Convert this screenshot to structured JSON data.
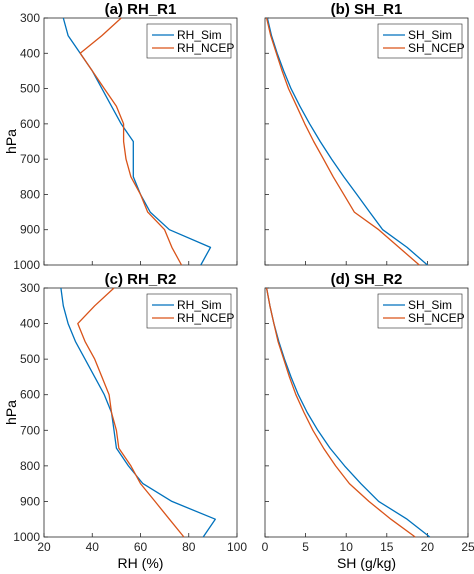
{
  "chart_data": [
    {
      "type": "line",
      "title": "(a) RH_R1",
      "xlabel": "",
      "ylabel": "hPa",
      "xlim": [
        20,
        100
      ],
      "ylim": [
        1000,
        300
      ],
      "xticks": [],
      "yticks": [
        "300",
        "400",
        "500",
        "600",
        "700",
        "800",
        "900",
        "1000"
      ],
      "legend": "top-right",
      "series": [
        {
          "name": "RH_Sim",
          "color": "#0072bd",
          "x": [
            28,
            30,
            35,
            40,
            44,
            48,
            52,
            57,
            57,
            57,
            60,
            64,
            72,
            89,
            85
          ],
          "y": [
            300,
            350,
            400,
            450,
            500,
            550,
            600,
            650,
            700,
            750,
            800,
            850,
            900,
            950,
            1000
          ]
        },
        {
          "name": "RH_NCEP",
          "color": "#d95319",
          "x": [
            52,
            44,
            35,
            40,
            45,
            50,
            53,
            53,
            54,
            56,
            60,
            63,
            70,
            73,
            77
          ],
          "y": [
            300,
            350,
            400,
            450,
            500,
            550,
            600,
            650,
            700,
            750,
            800,
            850,
            900,
            950,
            1000
          ]
        }
      ]
    },
    {
      "type": "line",
      "title": "(b) SH_R1",
      "xlabel": "",
      "ylabel": "",
      "xlim": [
        0,
        25
      ],
      "ylim": [
        1000,
        300
      ],
      "xticks": [],
      "yticks": [],
      "legend": "top-right",
      "series": [
        {
          "name": "SH_Sim",
          "color": "#0072bd",
          "x": [
            0.3,
            0.8,
            1.5,
            2.3,
            3.2,
            4.3,
            5.5,
            6.8,
            8.2,
            9.7,
            11.3,
            12.9,
            14.5,
            17.5,
            20
          ],
          "y": [
            300,
            350,
            400,
            450,
            500,
            550,
            600,
            650,
            700,
            750,
            800,
            850,
            900,
            950,
            1000
          ]
        },
        {
          "name": "SH_NCEP",
          "color": "#d95319",
          "x": [
            0.2,
            0.7,
            1.4,
            2.1,
            2.9,
            3.9,
            4.9,
            6.0,
            7.2,
            8.4,
            9.7,
            11.0,
            14,
            16.5,
            19
          ],
          "y": [
            300,
            350,
            400,
            450,
            500,
            550,
            600,
            650,
            700,
            750,
            800,
            850,
            900,
            950,
            1000
          ]
        }
      ]
    },
    {
      "type": "line",
      "title": "(c) RH_R2",
      "xlabel": "RH (%)",
      "ylabel": "hPa",
      "xlim": [
        20,
        100
      ],
      "ylim": [
        1000,
        300
      ],
      "xticks": [
        "20",
        "40",
        "60",
        "80",
        "100"
      ],
      "yticks": [
        "300",
        "400",
        "500",
        "600",
        "700",
        "800",
        "900",
        "1000"
      ],
      "legend": "top-right",
      "series": [
        {
          "name": "RH_Sim",
          "color": "#0072bd",
          "x": [
            27,
            28,
            30,
            33,
            37,
            41,
            45,
            48,
            49,
            50,
            55,
            61,
            73,
            91,
            86
          ],
          "y": [
            300,
            350,
            400,
            450,
            500,
            550,
            600,
            650,
            700,
            750,
            800,
            850,
            900,
            950,
            1000
          ]
        },
        {
          "name": "RH_NCEP",
          "color": "#d95319",
          "x": [
            49,
            41,
            34,
            37,
            41,
            44,
            47,
            48,
            50,
            51,
            56,
            60,
            66,
            72,
            78
          ],
          "y": [
            300,
            350,
            400,
            450,
            500,
            550,
            600,
            650,
            700,
            750,
            800,
            850,
            900,
            950,
            1000
          ]
        }
      ]
    },
    {
      "type": "line",
      "title": "(d) SH_R2",
      "xlabel": "SH (g/kg)",
      "ylabel": "",
      "xlim": [
        0,
        25
      ],
      "ylim": [
        1000,
        300
      ],
      "xticks": [
        "0",
        "5",
        "10",
        "15",
        "20",
        "25"
      ],
      "yticks": [],
      "legend": "top-right",
      "series": [
        {
          "name": "SH_Sim",
          "color": "#0072bd",
          "x": [
            0.2,
            0.6,
            1.1,
            1.7,
            2.4,
            3.2,
            4.1,
            5.2,
            6.5,
            8.0,
            9.8,
            11.8,
            14.0,
            17.5,
            20.3
          ],
          "y": [
            300,
            350,
            400,
            450,
            500,
            550,
            600,
            650,
            700,
            750,
            800,
            850,
            900,
            950,
            1000
          ]
        },
        {
          "name": "SH_NCEP",
          "color": "#d95319",
          "x": [
            0.2,
            0.6,
            1.1,
            1.6,
            2.3,
            3.0,
            3.8,
            4.8,
            5.9,
            7.2,
            8.7,
            10.4,
            12.8,
            15.5,
            18.5
          ],
          "y": [
            300,
            350,
            400,
            450,
            500,
            550,
            600,
            650,
            700,
            750,
            800,
            850,
            900,
            950,
            1000
          ]
        }
      ]
    }
  ]
}
